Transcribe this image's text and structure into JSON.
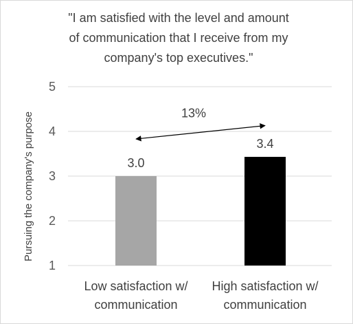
{
  "chart_data": {
    "type": "bar",
    "title_lines": [
      "\"I am satisfied with the level and amount",
      "of communication that I receive from my",
      "company's top executives.\""
    ],
    "ylabel": "Pursuing the company's purpose",
    "xlabel": "",
    "ylim": [
      1,
      5
    ],
    "yticks": [
      "1",
      "2",
      "3",
      "4",
      "5"
    ],
    "grid": true,
    "legend": "none",
    "categories": [
      [
        "Low satisfaction w/",
        "communication"
      ],
      [
        "High satisfaction w/",
        "communication"
      ]
    ],
    "values": [
      3.0,
      3.43
    ],
    "data_labels": [
      "3.0",
      "3.4"
    ],
    "bar_colors": [
      "#a6a6a6",
      "#000000"
    ],
    "annotation": {
      "text": "13%",
      "from_value": 3.83,
      "to_value": 4.13
    }
  }
}
